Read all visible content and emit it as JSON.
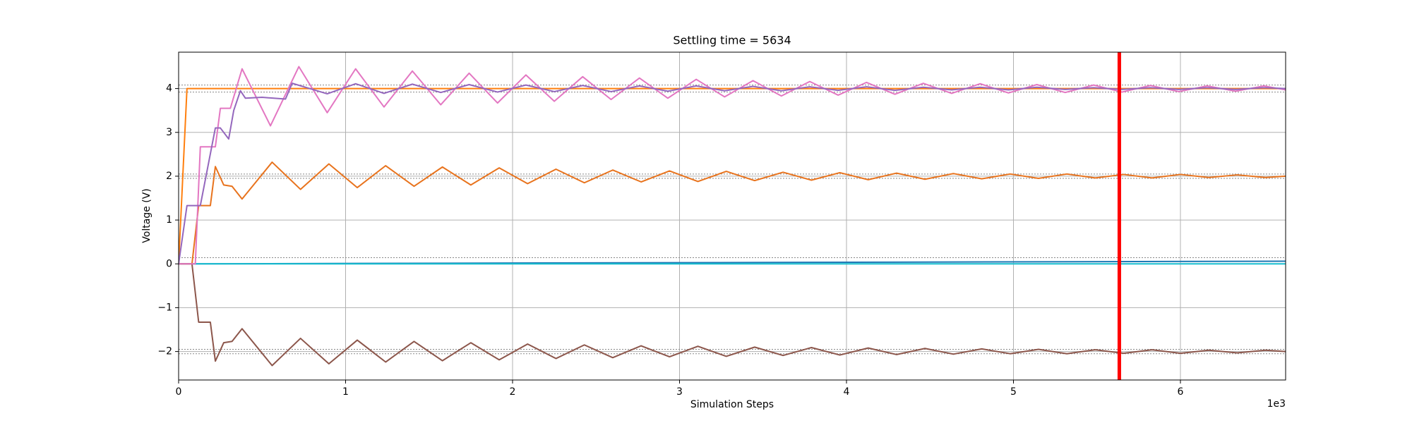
{
  "chart_data": {
    "type": "line",
    "title": "Settling time = 5634",
    "x_label": "Simulation Steps",
    "y_label": "Voltage (V)",
    "x_offset_label": "1e3",
    "xlim": [
      0,
      6630
    ],
    "ylim": [
      -2.65,
      4.83
    ],
    "xticks": [
      0,
      {
        "value": 1000,
        "label": "1"
      },
      {
        "value": 2000,
        "label": "2"
      },
      {
        "value": 3000,
        "label": "3"
      },
      {
        "value": 4000,
        "label": "4"
      },
      {
        "value": 5000,
        "label": "5"
      },
      {
        "value": 6000,
        "label": "6"
      }
    ],
    "yticks": [
      {
        "value": -2,
        "label": "−2"
      },
      {
        "value": -1,
        "label": "−1"
      },
      0,
      1,
      2,
      3,
      4
    ],
    "grid": true,
    "reference_lines": {
      "color": "#888888",
      "values": [
        4.08,
        3.92,
        2.05,
        1.95,
        0.14,
        -1.95,
        -2.05
      ]
    },
    "settling_line": {
      "x": 5634,
      "color": "#ff0000"
    },
    "series": [
      {
        "color": "#1f77b4",
        "x": [
          0,
          6630
        ],
        "values": [
          0,
          0.06
        ]
      },
      {
        "color": "#17becf",
        "x": [
          0,
          6630
        ],
        "values": [
          0,
          0
        ]
      },
      {
        "color": "#ff7f0e",
        "x": [
          0,
          50,
          6630
        ],
        "values": [
          0,
          4,
          4
        ]
      },
      {
        "color": "#e8731d",
        "x": [
          0,
          80,
          120,
          190,
          220,
          270,
          320,
          380,
          560,
          730,
          900,
          1070,
          1240,
          1410,
          1580,
          1750,
          1920,
          2090,
          2260,
          2430,
          2600,
          2770,
          2940,
          3110,
          3280,
          3450,
          3620,
          3790,
          3960,
          4130,
          4300,
          4470,
          4640,
          4810,
          4980,
          5150,
          5320,
          5490,
          5660,
          5830,
          6000,
          6170,
          6340,
          6510,
          6630
        ],
        "values": [
          0,
          0,
          1.33,
          1.33,
          2.22,
          1.8,
          1.77,
          1.48,
          2.32,
          1.7,
          2.28,
          1.74,
          2.24,
          1.77,
          2.21,
          1.8,
          2.19,
          1.83,
          2.16,
          1.85,
          2.14,
          1.87,
          2.12,
          1.88,
          2.11,
          1.9,
          2.09,
          1.91,
          2.08,
          1.92,
          2.07,
          1.93,
          2.06,
          1.94,
          2.05,
          1.95,
          2.05,
          1.96,
          2.04,
          1.96,
          2.04,
          1.97,
          2.03,
          1.97,
          2.0
        ]
      },
      {
        "color": "#8c564b",
        "x": [
          0,
          80,
          120,
          190,
          220,
          270,
          320,
          380,
          560,
          730,
          900,
          1070,
          1240,
          1410,
          1580,
          1750,
          1920,
          2090,
          2260,
          2430,
          2600,
          2770,
          2940,
          3110,
          3280,
          3450,
          3620,
          3790,
          3960,
          4130,
          4300,
          4470,
          4640,
          4810,
          4980,
          5150,
          5320,
          5490,
          5660,
          5830,
          6000,
          6170,
          6340,
          6510,
          6630
        ],
        "values": [
          0,
          0,
          -1.33,
          -1.33,
          -2.22,
          -1.8,
          -1.77,
          -1.48,
          -2.32,
          -1.7,
          -2.28,
          -1.74,
          -2.24,
          -1.77,
          -2.21,
          -1.8,
          -2.19,
          -1.83,
          -2.16,
          -1.85,
          -2.14,
          -1.87,
          -2.12,
          -1.88,
          -2.11,
          -1.9,
          -2.09,
          -1.91,
          -2.08,
          -1.92,
          -2.07,
          -1.93,
          -2.06,
          -1.94,
          -2.05,
          -1.95,
          -2.05,
          -1.96,
          -2.04,
          -1.96,
          -2.04,
          -1.97,
          -2.03,
          -1.97,
          -2.0
        ]
      },
      {
        "color": "#e377c2",
        "x": [
          0,
          100,
          130,
          220,
          250,
          310,
          380,
          550,
          720,
          890,
          1060,
          1230,
          1400,
          1570,
          1740,
          1910,
          2080,
          2250,
          2420,
          2590,
          2760,
          2930,
          3100,
          3270,
          3440,
          3610,
          3780,
          3950,
          4120,
          4290,
          4460,
          4630,
          4800,
          4970,
          5140,
          5310,
          5480,
          5650,
          5820,
          5990,
          6160,
          6330,
          6500,
          6630
        ],
        "values": [
          0,
          0,
          2.67,
          2.67,
          3.55,
          3.55,
          4.45,
          3.15,
          4.5,
          3.45,
          4.45,
          3.58,
          4.4,
          3.63,
          4.35,
          3.67,
          4.31,
          3.71,
          4.27,
          3.75,
          4.24,
          3.78,
          4.21,
          3.81,
          4.18,
          3.83,
          4.16,
          3.85,
          4.14,
          3.87,
          4.12,
          3.89,
          4.11,
          3.9,
          4.09,
          3.91,
          4.08,
          3.92,
          4.07,
          3.93,
          4.06,
          3.94,
          4.06,
          3.97
        ]
      },
      {
        "color": "#9467bd",
        "x": [
          0,
          50,
          130,
          220,
          250,
          300,
          330,
          370,
          400,
          500,
          640,
          680,
          890,
          1060,
          1230,
          1400,
          1570,
          1740,
          1910,
          2080,
          2250,
          2420,
          2590,
          2760,
          2930,
          3100,
          3270,
          3440,
          3610,
          3780,
          3950,
          4120,
          4290,
          4460,
          4630,
          4800,
          4970,
          5140,
          5310,
          5480,
          5650,
          5820,
          5990,
          6160,
          6330,
          6500,
          6630
        ],
        "values": [
          0,
          1.33,
          1.33,
          3.1,
          3.1,
          2.85,
          3.5,
          3.95,
          3.78,
          3.8,
          3.76,
          4.12,
          3.88,
          4.11,
          3.89,
          4.1,
          3.91,
          4.09,
          3.92,
          4.08,
          3.93,
          4.07,
          3.93,
          4.06,
          3.94,
          4.06,
          3.95,
          4.05,
          3.95,
          4.04,
          3.96,
          4.04,
          3.96,
          4.03,
          3.97,
          4.03,
          3.97,
          4.03,
          3.98,
          4.02,
          3.98,
          4.02,
          3.98,
          4.02,
          3.98,
          4.02,
          4.0
        ]
      }
    ]
  }
}
